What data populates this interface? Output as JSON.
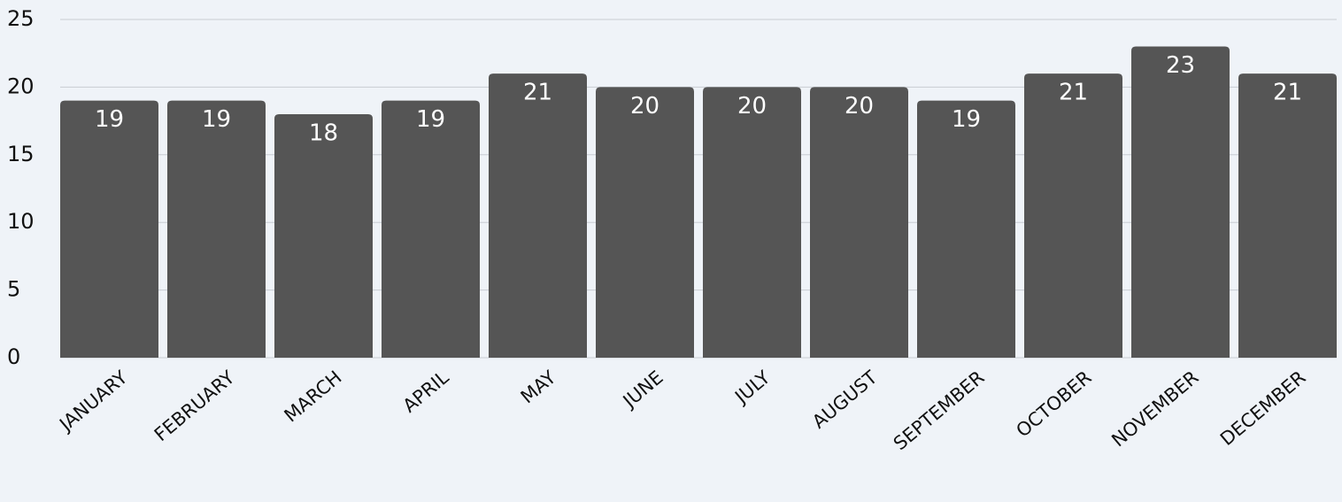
{
  "chart_data": {
    "type": "bar",
    "categories": [
      "JANUARY",
      "FEBRUARY",
      "MARCH",
      "APRIL",
      "MAY",
      "JUNE",
      "JULY",
      "AUGUST",
      "SEPTEMBER",
      "OCTOBER",
      "NOVEMBER",
      "DECEMBER"
    ],
    "values": [
      19,
      19,
      18,
      19,
      21,
      20,
      20,
      20,
      19,
      21,
      23,
      21
    ],
    "color": "#555555",
    "ylim": [
      0,
      25
    ],
    "yticks": [
      0,
      5,
      10,
      15,
      20,
      25
    ],
    "grid": true
  }
}
